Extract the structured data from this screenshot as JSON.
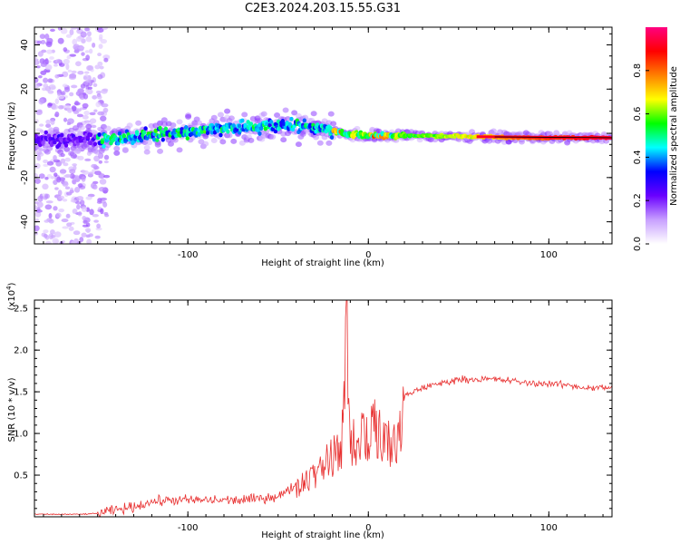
{
  "title": "C2E3.2024.203.15.55.G31",
  "chart_data": [
    {
      "type": "heatmap",
      "description_kind": "spectrogram",
      "xlabel": "Height of straight line (km)",
      "ylabel": "Frequency (Hz)",
      "xlim": [
        -185,
        135
      ],
      "ylim": [
        -50,
        48
      ],
      "xticks": [
        -100,
        0,
        100
      ],
      "yticks": [
        -40,
        -20,
        0,
        20,
        40
      ],
      "grid": false,
      "colorbar": {
        "label": "Normalized spectral amplitude",
        "range": [
          0.0,
          1.0
        ],
        "ticks": [
          0.0,
          0.2,
          0.4,
          0.6,
          0.8
        ],
        "tick_labels": [
          "0.0",
          "0.2",
          "0.4",
          "0.6",
          "0.8"
        ],
        "colormap_stops": [
          "#ffffff",
          "#c8a0ff",
          "#6a00ff",
          "#0000ff",
          "#00ffff",
          "#00ff00",
          "#ffff00",
          "#ff8000",
          "#ff0000",
          "#ff0080"
        ]
      },
      "ridge": [
        {
          "x": -185,
          "y": -3
        },
        {
          "x": -150,
          "y": -3
        },
        {
          "x": -120,
          "y": -1
        },
        {
          "x": -90,
          "y": 2
        },
        {
          "x": -60,
          "y": 3
        },
        {
          "x": -40,
          "y": 4
        },
        {
          "x": -25,
          "y": 2
        },
        {
          "x": -15,
          "y": 0
        },
        {
          "x": 0,
          "y": -1
        },
        {
          "x": 20,
          "y": -1
        },
        {
          "x": 60,
          "y": -1.5
        },
        {
          "x": 100,
          "y": -2
        },
        {
          "x": 135,
          "y": -2
        }
      ]
    },
    {
      "type": "line",
      "xlabel": "Height of straight line (km)",
      "ylabel": "SNR (10 * v/v)",
      "yscale_label": "(x10",
      "yscale_exp": "4",
      "yscale_close": ")",
      "xlim": [
        -185,
        135
      ],
      "ylim": [
        0,
        2.6
      ],
      "xticks": [
        -100,
        0,
        100
      ],
      "yticks": [
        0.5,
        1.0,
        1.5,
        2.0,
        2.5
      ],
      "ytick_labels": [
        "0.5",
        "1.0",
        "1.5",
        "2.0",
        "2.5"
      ],
      "grid": false,
      "series": [
        {
          "color": "#e83030",
          "x": [
            -185,
            -170,
            -160,
            -150,
            -140,
            -130,
            -120,
            -110,
            -100,
            -90,
            -80,
            -70,
            -60,
            -50,
            -45,
            -40,
            -35,
            -30,
            -25,
            -20,
            -15,
            -12,
            -10,
            -5,
            0,
            5,
            10,
            15,
            20,
            25,
            30,
            40,
            50,
            60,
            70,
            80,
            90,
            100,
            110,
            120,
            130,
            135
          ],
          "y": [
            0.03,
            0.03,
            0.03,
            0.04,
            0.08,
            0.12,
            0.18,
            0.2,
            0.2,
            0.2,
            0.2,
            0.2,
            0.22,
            0.25,
            0.3,
            0.4,
            0.5,
            0.6,
            0.7,
            0.85,
            0.9,
            2.6,
            1.1,
            1.1,
            1.2,
            1.25,
            1.0,
            1.1,
            1.45,
            1.5,
            1.55,
            1.6,
            1.65,
            1.65,
            1.65,
            1.63,
            1.6,
            1.6,
            1.58,
            1.55,
            1.55,
            1.55
          ]
        }
      ]
    }
  ]
}
